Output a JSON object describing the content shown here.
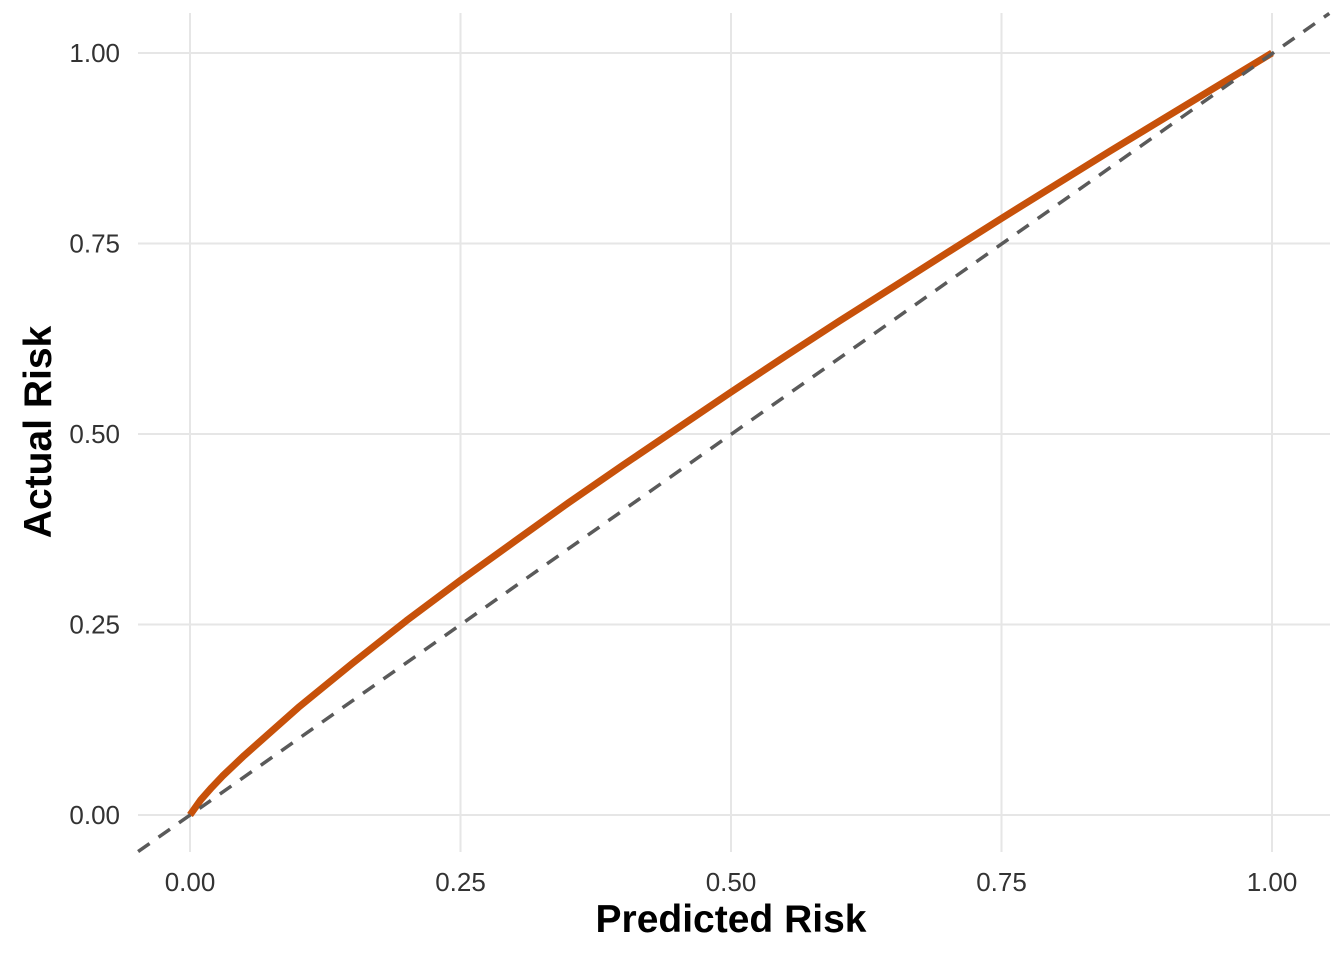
{
  "figure": {
    "background": "#FFFFFF"
  },
  "chart_data": {
    "type": "line",
    "title": "",
    "xlabel": "Predicted Risk",
    "ylabel": "Actual Risk",
    "xlim": [
      -0.05,
      1.05
    ],
    "ylim": [
      -0.05,
      1.05
    ],
    "grid": "major-only",
    "grid_color": "#E6E6E6",
    "legend": "none",
    "tick_label_color": "#333333",
    "axis_title_color": "#000000",
    "x_ticks": [
      0,
      0.25,
      0.5,
      0.75,
      1
    ],
    "x_tick_labels": [
      "0.00",
      "0.25",
      "0.50",
      "0.75",
      "1.00"
    ],
    "y_ticks": [
      0,
      0.25,
      0.5,
      0.75,
      1
    ],
    "y_tick_labels": [
      "0.00",
      "0.25",
      "0.50",
      "0.75",
      "1.00"
    ],
    "series": [
      {
        "name": "calibration-curve",
        "color": "#C7510A",
        "style": "solid",
        "line_width": 7,
        "x": [
          0,
          0.01,
          0.02,
          0.03,
          0.05,
          0.1,
          0.15,
          0.2,
          0.25,
          0.3,
          0.35,
          0.4,
          0.45,
          0.5,
          0.55,
          0.6,
          0.65,
          0.7,
          0.75,
          0.8,
          0.85,
          0.9,
          0.95,
          1.0
        ],
        "y": [
          0,
          0.02,
          0.036,
          0.051,
          0.078,
          0.141,
          0.199,
          0.255,
          0.308,
          0.359,
          0.41,
          0.459,
          0.507,
          0.555,
          0.602,
          0.648,
          0.693,
          0.738,
          0.783,
          0.827,
          0.871,
          0.914,
          0.957,
          1.0
        ]
      },
      {
        "name": "ideal-reference-line",
        "color": "#5A5A5A",
        "style": "dashed",
        "line_width": 3.5,
        "x": [
          -0.048,
          1.053
        ],
        "y": [
          -0.048,
          1.052
        ]
      }
    ]
  }
}
